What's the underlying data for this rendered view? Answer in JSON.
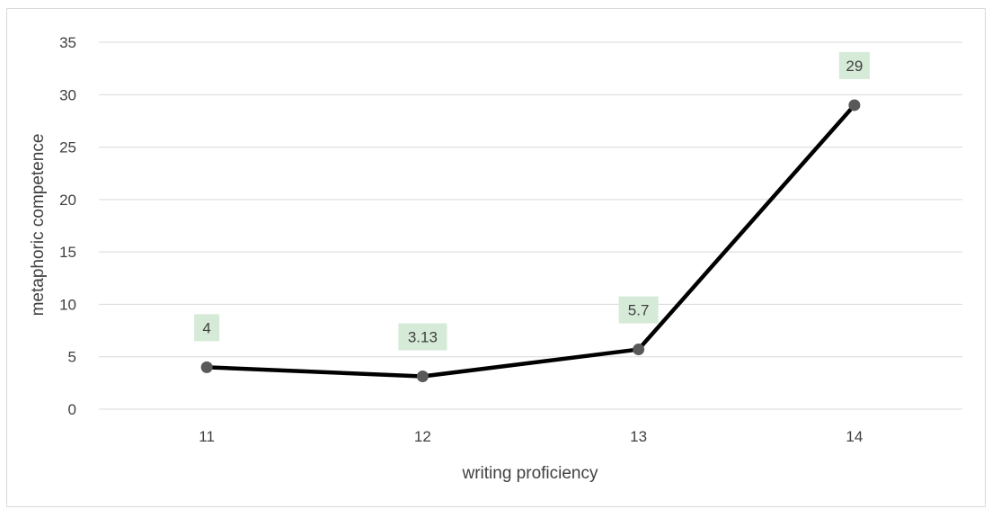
{
  "chart_data": {
    "type": "line",
    "title": "",
    "xlabel": "writing proficiency",
    "ylabel": "metaphoric competence",
    "categories": [
      "11",
      "12",
      "13",
      "14"
    ],
    "series": [
      {
        "values": [
          4,
          3.13,
          5.7,
          29
        ],
        "labels": [
          "4",
          "3.13",
          "5.7",
          "29"
        ]
      }
    ],
    "ylim": [
      0,
      35
    ],
    "yticks": [
      0,
      5,
      10,
      15,
      20,
      25,
      30,
      35
    ],
    "grid": true,
    "legend": "none",
    "colors": {
      "line": "#000000",
      "marker": "#595959",
      "label_bg": "#d5ead7",
      "grid": "#d9d9d9",
      "text": "#404040"
    }
  }
}
